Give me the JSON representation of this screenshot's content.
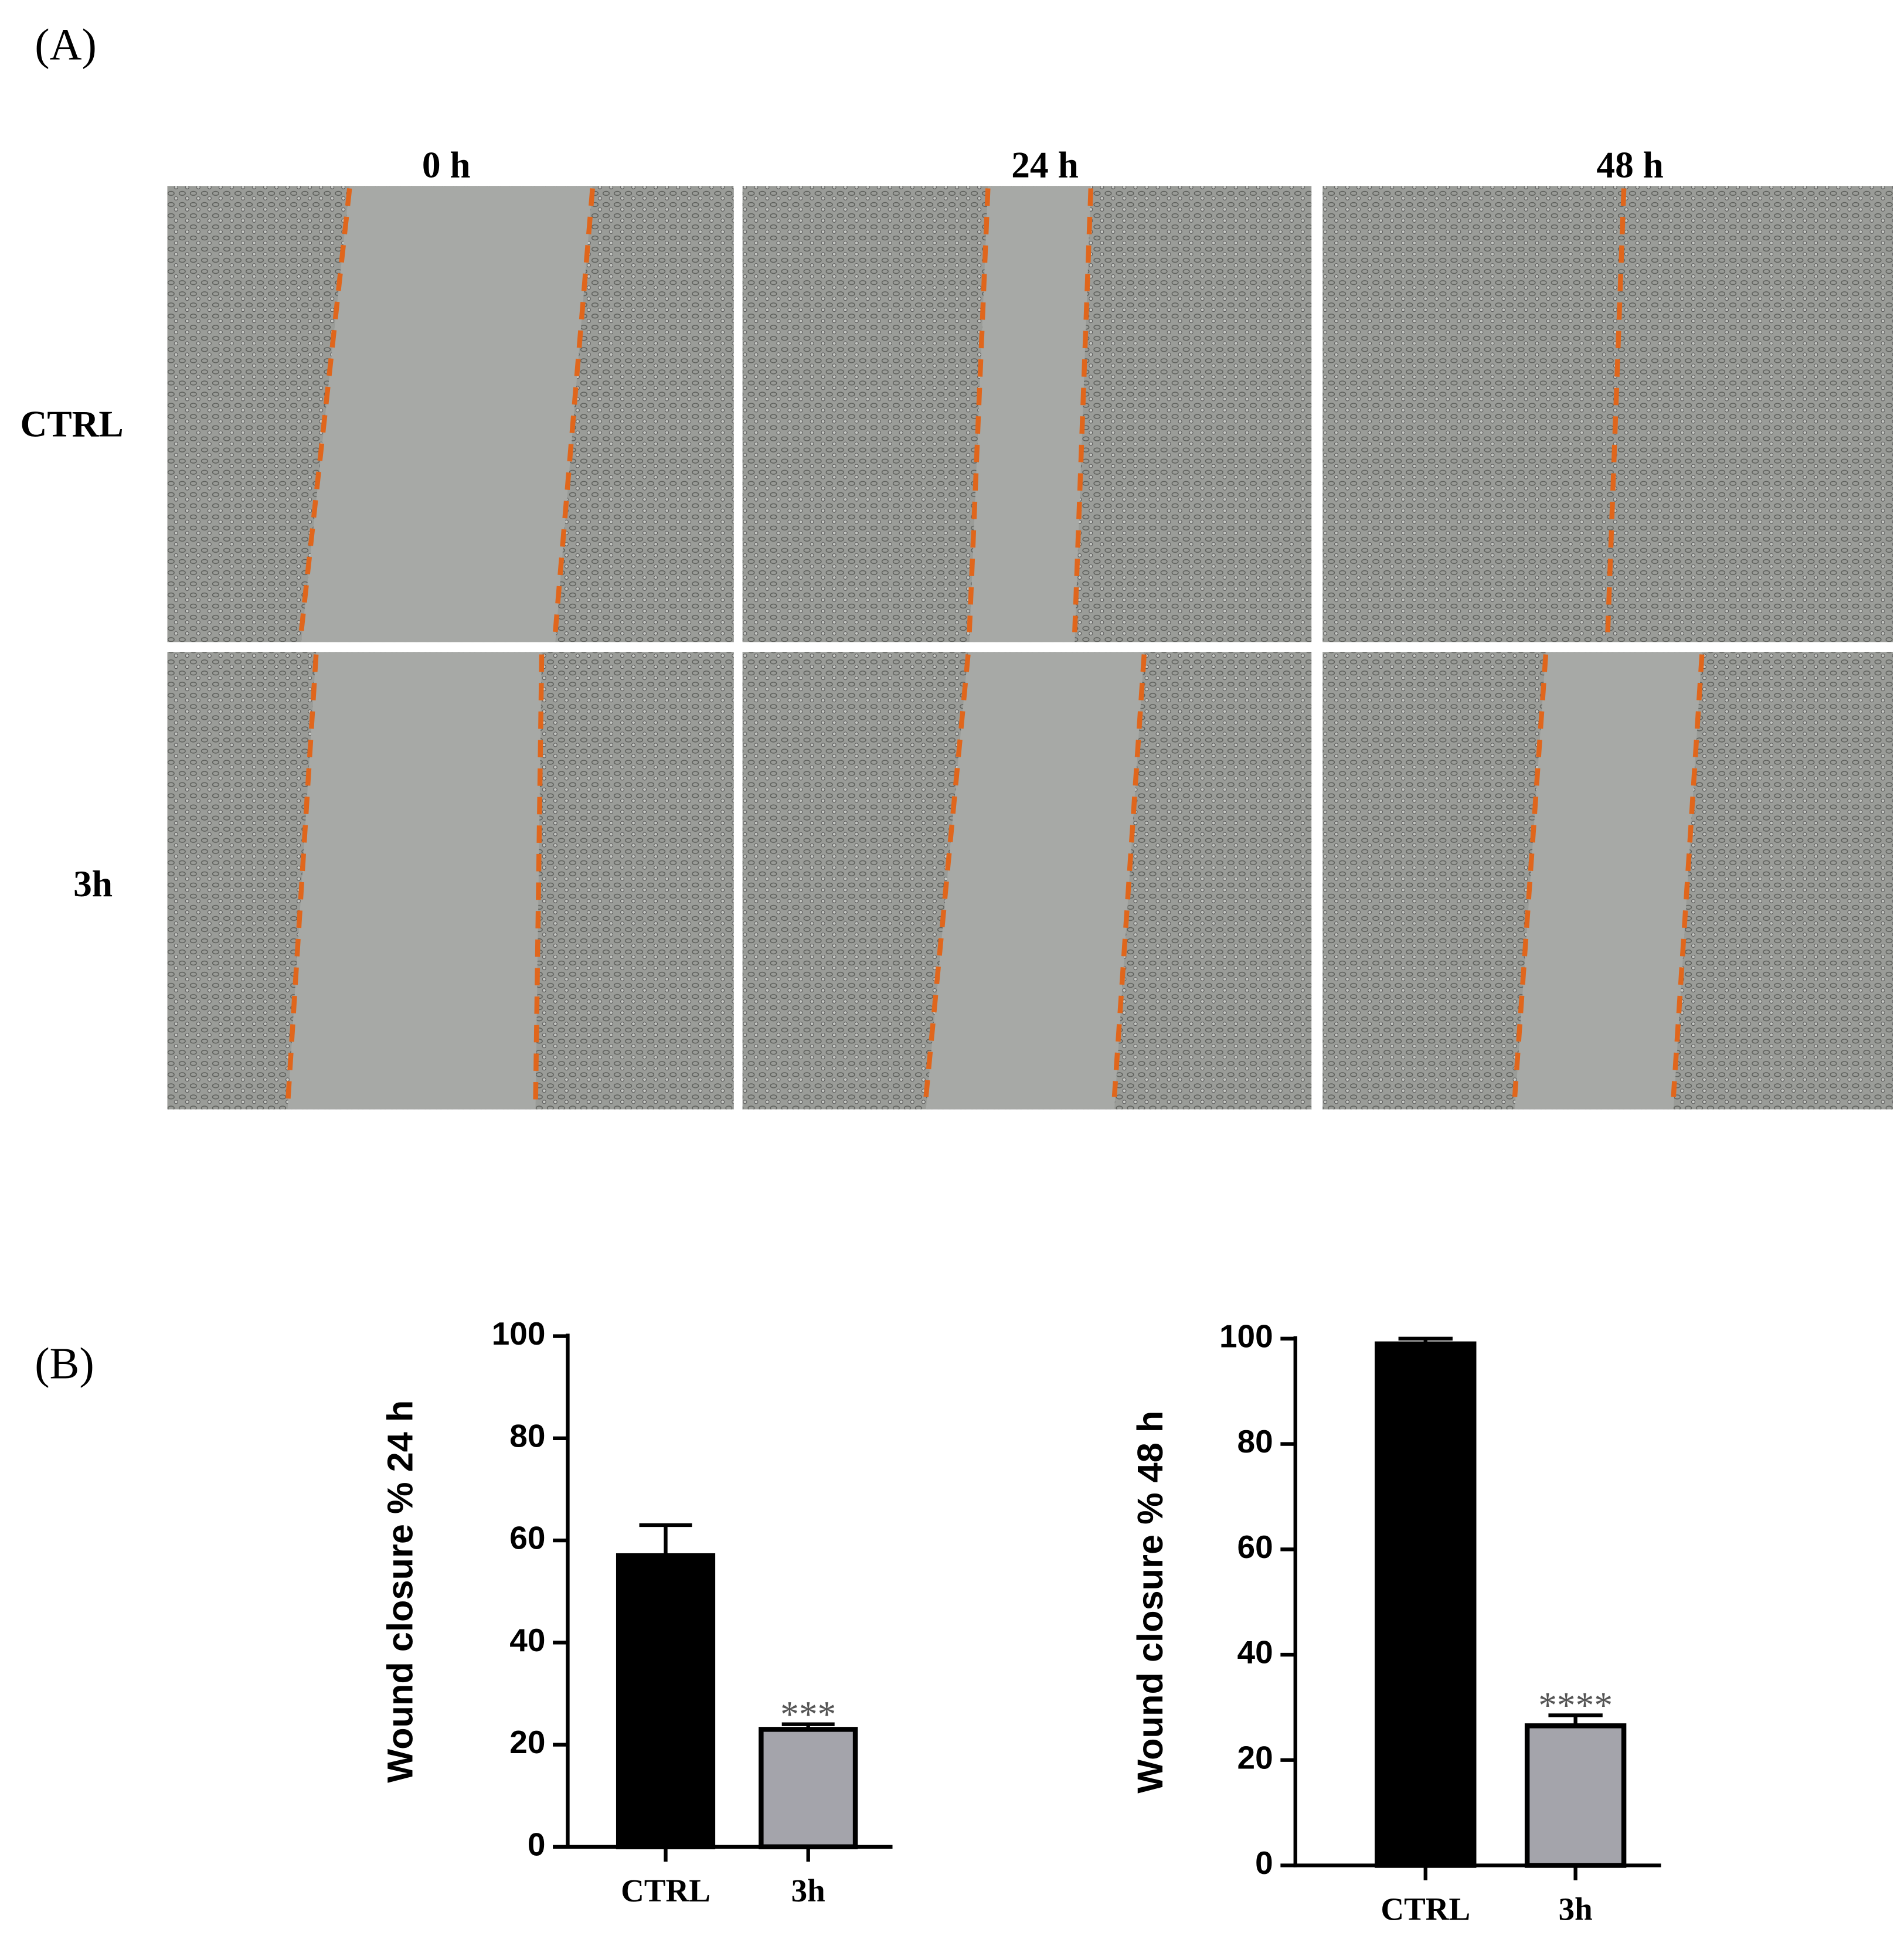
{
  "panel_a": {
    "label": "(A)",
    "columns": [
      "0 h",
      "24 h",
      "48 h"
    ],
    "rows": [
      "CTRL",
      "3h"
    ]
  },
  "panel_b": {
    "label": "(B)"
  },
  "chart_data": [
    {
      "type": "bar",
      "y_label": "Wound closure % 24 h",
      "categories": [
        "CTRL",
        "3h"
      ],
      "values": [
        57,
        23
      ],
      "errors": [
        6,
        1
      ],
      "colors": [
        "#000000",
        "#a4a4ab"
      ],
      "significance": [
        null,
        "***"
      ],
      "ylim": [
        0,
        100
      ],
      "yticks": [
        0,
        20,
        40,
        60,
        80,
        100
      ]
    },
    {
      "type": "bar",
      "y_label": "Wound closure % 48 h",
      "categories": [
        "CTRL",
        "3h"
      ],
      "values": [
        99,
        26.5
      ],
      "errors": [
        1,
        2
      ],
      "colors": [
        "#000000",
        "#a4a4ab"
      ],
      "significance": [
        null,
        "****"
      ],
      "ylim": [
        0,
        100
      ],
      "yticks": [
        0,
        20,
        40,
        60,
        80,
        100
      ]
    }
  ]
}
